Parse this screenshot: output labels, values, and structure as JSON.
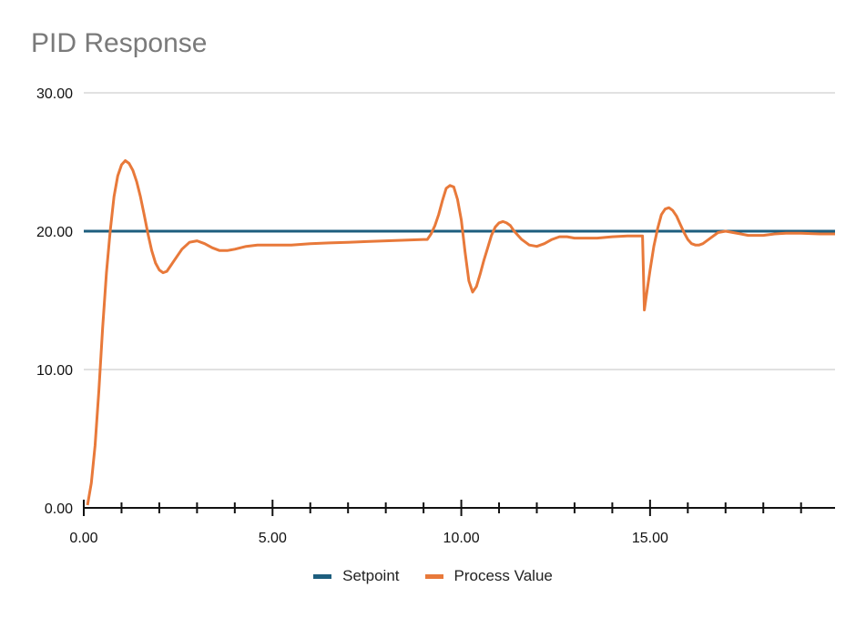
{
  "chart_data": {
    "type": "line",
    "title": "PID Response",
    "xlabel": "",
    "ylabel": "",
    "xlim": [
      0,
      19.9
    ],
    "ylim": [
      0,
      30
    ],
    "x_ticks": [
      "0.00",
      "5.00",
      "10.00",
      "15.00"
    ],
    "y_ticks": [
      "0.00",
      "10.00",
      "20.00",
      "30.00"
    ],
    "grid": "horizontal",
    "legend_position": "bottom",
    "series": [
      {
        "name": "Setpoint",
        "color": "#1d5e7e",
        "x": [
          0,
          19.9
        ],
        "y": [
          20,
          20
        ]
      },
      {
        "name": "Process Value",
        "color": "#e8793a",
        "x": [
          0.1,
          0.2,
          0.3,
          0.4,
          0.5,
          0.6,
          0.7,
          0.8,
          0.9,
          1.0,
          1.1,
          1.2,
          1.3,
          1.4,
          1.5,
          1.6,
          1.7,
          1.8,
          1.9,
          2.0,
          2.1,
          2.2,
          2.3,
          2.4,
          2.6,
          2.8,
          3.0,
          3.2,
          3.4,
          3.6,
          3.8,
          4.0,
          4.3,
          4.6,
          5.0,
          5.5,
          6.0,
          6.5,
          7.0,
          7.5,
          8.0,
          8.5,
          9.0,
          9.1,
          9.2,
          9.3,
          9.4,
          9.5,
          9.6,
          9.7,
          9.8,
          9.9,
          10.0,
          10.1,
          10.2,
          10.3,
          10.4,
          10.5,
          10.6,
          10.7,
          10.8,
          10.9,
          11.0,
          11.1,
          11.2,
          11.3,
          11.4,
          11.6,
          11.8,
          12.0,
          12.2,
          12.4,
          12.6,
          12.8,
          13.0,
          13.3,
          13.6,
          14.0,
          14.4,
          14.8,
          14.85,
          14.9,
          15.0,
          15.1,
          15.2,
          15.3,
          15.4,
          15.5,
          15.6,
          15.7,
          15.8,
          15.9,
          16.0,
          16.1,
          16.2,
          16.3,
          16.4,
          16.6,
          16.8,
          17.0,
          17.2,
          17.4,
          17.6,
          17.8,
          18.0,
          18.3,
          18.6,
          19.0,
          19.5,
          19.9
        ],
        "y": [
          0.2,
          1.8,
          4.5,
          8.5,
          13.0,
          17.0,
          20.0,
          22.5,
          24.0,
          24.8,
          25.1,
          24.9,
          24.4,
          23.6,
          22.5,
          21.2,
          19.8,
          18.6,
          17.7,
          17.2,
          17.0,
          17.1,
          17.5,
          17.9,
          18.7,
          19.2,
          19.3,
          19.1,
          18.8,
          18.6,
          18.6,
          18.7,
          18.9,
          19.0,
          19.0,
          19.0,
          19.1,
          19.15,
          19.2,
          19.25,
          19.3,
          19.35,
          19.4,
          19.4,
          19.8,
          20.4,
          21.2,
          22.2,
          23.1,
          23.3,
          23.2,
          22.3,
          20.8,
          18.5,
          16.4,
          15.6,
          16.0,
          16.9,
          17.9,
          18.8,
          19.7,
          20.3,
          20.6,
          20.7,
          20.6,
          20.4,
          20.0,
          19.4,
          19.0,
          18.9,
          19.1,
          19.4,
          19.6,
          19.6,
          19.5,
          19.5,
          19.5,
          19.6,
          19.65,
          19.65,
          14.3,
          15.3,
          17.2,
          18.9,
          20.2,
          21.2,
          21.6,
          21.7,
          21.5,
          21.1,
          20.5,
          19.9,
          19.4,
          19.1,
          19.0,
          19.0,
          19.1,
          19.5,
          19.9,
          20.0,
          19.9,
          19.8,
          19.7,
          19.7,
          19.7,
          19.8,
          19.85,
          19.85,
          19.8,
          19.8
        ]
      }
    ]
  }
}
